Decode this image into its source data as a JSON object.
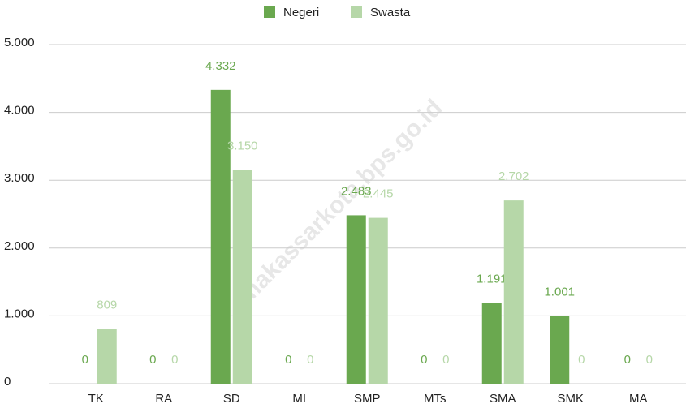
{
  "chart_data": {
    "type": "bar",
    "categories": [
      "TK",
      "RA",
      "SD",
      "MI",
      "SMP",
      "MTs",
      "SMA",
      "SMK",
      "MA"
    ],
    "series": [
      {
        "name": "Negeri",
        "color": "#6aa84f",
        "values": [
          0,
          0,
          4332,
          0,
          2483,
          0,
          1191,
          1001,
          0
        ],
        "value_labels": [
          "0",
          "0",
          "4.332",
          "0",
          "2.483",
          "0",
          "1.191",
          "1.001",
          "0"
        ]
      },
      {
        "name": "Swasta",
        "color": "#b6d7a8",
        "values": [
          809,
          0,
          3150,
          0,
          2445,
          0,
          2702,
          0,
          0
        ],
        "value_labels": [
          "809",
          "0",
          "3.150",
          "0",
          "2.445",
          "0",
          "2.702",
          "0",
          "0"
        ]
      }
    ],
    "ylim": [
      0,
      5000
    ],
    "yticks": [
      0,
      {
        "value": 1000,
        "label": "1.000"
      },
      {
        "value": 2000,
        "label": "2.000"
      },
      {
        "value": 3000,
        "label": "3.000"
      },
      {
        "value": 4000,
        "label": "4.000"
      },
      {
        "value": 5000,
        "label": "5.000"
      }
    ],
    "grid": true,
    "legend": "top",
    "annotation": "makassarkota.bps.go.id"
  }
}
